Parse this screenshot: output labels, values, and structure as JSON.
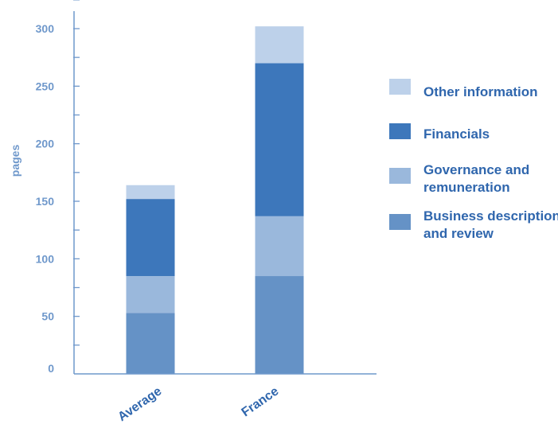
{
  "chart_data": {
    "type": "bar",
    "stacked": true,
    "title": "",
    "xlabel": "",
    "ylabel": "pages",
    "ylim": [
      0,
      300
    ],
    "yticks": [
      0,
      50,
      100,
      150,
      200,
      250,
      300
    ],
    "categories": [
      "Average",
      "France"
    ],
    "series": [
      {
        "name": "Business description and review",
        "legend_lines": [
          "Business description",
          "and review"
        ],
        "color": "#6592c6",
        "values": [
          53,
          85
        ]
      },
      {
        "name": "Governance and remuneration",
        "legend_lines": [
          "Governance and",
          "remuneration"
        ],
        "color": "#9ab8dc",
        "values": [
          32,
          52
        ]
      },
      {
        "name": "Financials",
        "legend_lines": [
          "Financials"
        ],
        "color": "#3d77bb",
        "values": [
          67,
          133
        ]
      },
      {
        "name": "Other information",
        "legend_lines": [
          "Other information"
        ],
        "color": "#bdd1ea",
        "values": [
          12,
          32
        ]
      }
    ],
    "legend": "right",
    "grid": false,
    "colors": {
      "axis": "#6f98cb",
      "tick_text": "#6f98cb",
      "category_text": "#2f66ad",
      "legend_text": "#2f66ad"
    }
  }
}
